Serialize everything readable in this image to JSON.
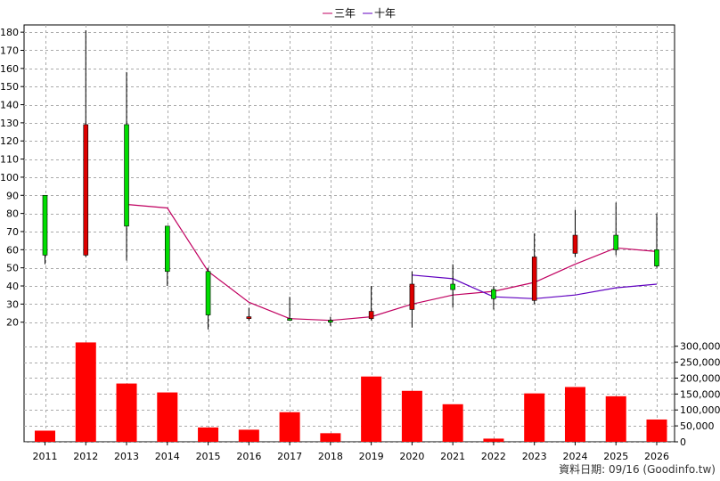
{
  "chart_data": {
    "type": "candlestick",
    "legend": [
      {
        "label": "三年",
        "color": "#c00060"
      },
      {
        "label": "十年",
        "color": "#6000c0"
      }
    ],
    "x": [
      "2011",
      "2012",
      "2013",
      "2014",
      "2015",
      "2016",
      "2017",
      "2018",
      "2019",
      "2020",
      "2021",
      "2022",
      "2023",
      "2024",
      "2025",
      "2026"
    ],
    "price_axis": {
      "ticks": [
        20,
        30,
        40,
        50,
        60,
        70,
        80,
        90,
        100,
        110,
        120,
        130,
        140,
        150,
        160,
        170,
        180
      ],
      "ylim": [
        12,
        184
      ]
    },
    "candles": [
      {
        "open": 57,
        "close": 90,
        "high": 90,
        "low": 52
      },
      {
        "open": 129,
        "close": 57,
        "high": 181,
        "low": 56
      },
      {
        "open": 73,
        "close": 129,
        "high": 158,
        "low": 54
      },
      {
        "open": 48,
        "close": 73,
        "high": 73,
        "low": 40
      },
      {
        "open": 24,
        "close": 48,
        "high": 50,
        "low": 16
      },
      {
        "open": 23,
        "close": 22,
        "high": 28,
        "low": 21
      },
      {
        "open": 22,
        "close": 22,
        "high": 34,
        "low": 21
      },
      {
        "open": 21,
        "close": 21,
        "high": 23,
        "low": 18
      },
      {
        "open": 26,
        "close": 22,
        "high": 40,
        "low": 21
      },
      {
        "open": 41,
        "close": 27,
        "high": 48,
        "low": 17
      },
      {
        "open": 38,
        "close": 41,
        "high": 52,
        "low": 28
      },
      {
        "open": 33,
        "close": 38,
        "high": 40,
        "low": 27
      },
      {
        "open": 56,
        "close": 32,
        "high": 69,
        "low": 30
      },
      {
        "open": 68,
        "close": 58,
        "high": 82,
        "low": 56
      },
      {
        "open": 60,
        "close": 68,
        "high": 86,
        "low": 57
      },
      {
        "open": 51,
        "close": 60,
        "high": 80,
        "low": 50
      }
    ],
    "series": [
      {
        "name": "三年",
        "color": "#c00060",
        "values": [
          null,
          null,
          85,
          83,
          48,
          31,
          22,
          21,
          23,
          30,
          35,
          37,
          42,
          52,
          61,
          59
        ]
      },
      {
        "name": "十年",
        "color": "#6000c0",
        "values": [
          null,
          null,
          null,
          null,
          null,
          null,
          null,
          null,
          null,
          46,
          44,
          34,
          33,
          35,
          39,
          41
        ]
      }
    ],
    "volume": {
      "values": [
        35000,
        312000,
        183000,
        155000,
        45000,
        38000,
        93000,
        27000,
        205000,
        160000,
        118000,
        10000,
        152000,
        172000,
        143000,
        70000
      ],
      "color": "#ff0000",
      "ticks": [
        0,
        50000,
        100000,
        150000,
        200000,
        250000,
        300000
      ],
      "tick_labels": [
        "0",
        "50,000",
        "100,000",
        "150,000",
        "200,000",
        "250,000",
        "300,000"
      ],
      "ylim": [
        0,
        330000
      ]
    },
    "candle_colors": {
      "up": "#00dd00",
      "down": "#dd0000"
    },
    "grid": true
  },
  "footer": "資料日期: 09/16  (Goodinfo.tw)"
}
